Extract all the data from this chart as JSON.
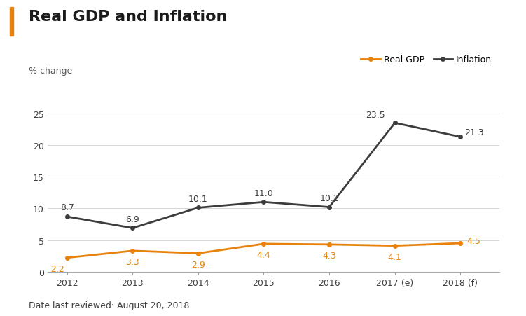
{
  "title": "Real GDP and Inflation",
  "subtitle": "% change",
  "footer": "Date last reviewed: August 20, 2018",
  "x_labels": [
    "2012",
    "2013",
    "2014",
    "2015",
    "2016",
    "2017 (e)",
    "2018 (f)"
  ],
  "x_values": [
    0,
    1,
    2,
    3,
    4,
    5,
    6
  ],
  "real_gdp": [
    2.2,
    3.3,
    2.9,
    4.4,
    4.3,
    4.1,
    4.5
  ],
  "inflation": [
    8.7,
    6.9,
    10.1,
    11.0,
    10.2,
    23.5,
    21.3
  ],
  "real_gdp_labels": [
    "2.2",
    "3.3",
    "2.9",
    "4.4",
    "4.3",
    "4.1",
    "4.5"
  ],
  "inflation_labels": [
    "8.7",
    "6.9",
    "10.1",
    "11.0",
    "10.2",
    "23.5",
    "21.3"
  ],
  "gdp_color": "#E8820C",
  "inflation_color": "#3d3d3d",
  "title_bar_color": "#E8820C",
  "ylim": [
    0,
    25
  ],
  "yticks": [
    0,
    5,
    10,
    15,
    20,
    25
  ],
  "background_color": "#ffffff",
  "legend_labels": [
    "Real GDP",
    "Inflation"
  ],
  "title_fontsize": 16,
  "subtitle_fontsize": 9,
  "footer_fontsize": 9,
  "label_fontsize": 9,
  "axis_fontsize": 9
}
